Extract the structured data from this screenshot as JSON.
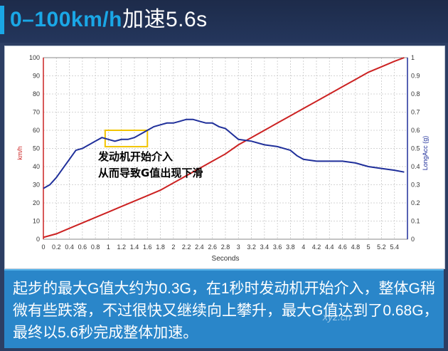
{
  "header": {
    "title_accent": "0–100km/h",
    "title_rest": "加速5.6s"
  },
  "chart_data": {
    "type": "line",
    "xlabel": "Seconds",
    "ylabel_left": "km/h",
    "ylabel_right": "LongAcc (g)",
    "xlim": [
      0,
      5.6
    ],
    "ylim_left": [
      0,
      100
    ],
    "ylim_right": [
      0,
      1
    ],
    "x_ticks": [
      "0",
      "0.2",
      "0.4",
      "0.6",
      "0.8",
      "1",
      "1.2",
      "1.4",
      "1.6",
      "1.8",
      "2",
      "2.2",
      "2.4",
      "2.6",
      "2.8",
      "3",
      "3.2",
      "3.4",
      "3.6",
      "3.8",
      "4",
      "4.2",
      "4.4",
      "4.6",
      "4.8",
      "5",
      "5.2",
      "5.4"
    ],
    "y_ticks_left": [
      "0",
      "10",
      "20",
      "30",
      "40",
      "50",
      "60",
      "70",
      "80",
      "90",
      "100"
    ],
    "y_ticks_right": [
      "0",
      "0.1",
      "0.2",
      "0.3",
      "0.4",
      "0.5",
      "0.6",
      "0.7",
      "0.8",
      "0.9",
      "1"
    ],
    "grid": true,
    "series": [
      {
        "axis": "left",
        "color": "#cc2222",
        "points": [
          [
            0,
            1
          ],
          [
            0.2,
            3
          ],
          [
            0.4,
            6
          ],
          [
            0.6,
            9
          ],
          [
            0.8,
            12
          ],
          [
            1.0,
            15
          ],
          [
            1.2,
            18
          ],
          [
            1.4,
            21
          ],
          [
            1.6,
            24
          ],
          [
            1.8,
            27
          ],
          [
            2.0,
            31
          ],
          [
            2.2,
            35
          ],
          [
            2.4,
            39
          ],
          [
            2.6,
            43
          ],
          [
            2.8,
            47
          ],
          [
            3.0,
            52
          ],
          [
            3.2,
            56
          ],
          [
            3.4,
            60
          ],
          [
            3.6,
            64
          ],
          [
            3.8,
            68
          ],
          [
            4.0,
            72
          ],
          [
            4.2,
            76
          ],
          [
            4.4,
            80
          ],
          [
            4.6,
            84
          ],
          [
            4.8,
            88
          ],
          [
            5.0,
            92
          ],
          [
            5.2,
            95
          ],
          [
            5.4,
            98
          ],
          [
            5.55,
            100
          ]
        ]
      },
      {
        "axis": "right",
        "color": "#1f2f9a",
        "points": [
          [
            0,
            0.28
          ],
          [
            0.1,
            0.3
          ],
          [
            0.2,
            0.34
          ],
          [
            0.3,
            0.39
          ],
          [
            0.4,
            0.44
          ],
          [
            0.5,
            0.49
          ],
          [
            0.6,
            0.5
          ],
          [
            0.7,
            0.52
          ],
          [
            0.8,
            0.54
          ],
          [
            0.9,
            0.56
          ],
          [
            1.0,
            0.55
          ],
          [
            1.1,
            0.54
          ],
          [
            1.2,
            0.55
          ],
          [
            1.3,
            0.55
          ],
          [
            1.4,
            0.56
          ],
          [
            1.5,
            0.58
          ],
          [
            1.6,
            0.6
          ],
          [
            1.7,
            0.62
          ],
          [
            1.8,
            0.63
          ],
          [
            1.9,
            0.64
          ],
          [
            2.0,
            0.64
          ],
          [
            2.1,
            0.65
          ],
          [
            2.2,
            0.66
          ],
          [
            2.3,
            0.66
          ],
          [
            2.4,
            0.65
          ],
          [
            2.5,
            0.64
          ],
          [
            2.6,
            0.64
          ],
          [
            2.7,
            0.62
          ],
          [
            2.8,
            0.61
          ],
          [
            2.9,
            0.58
          ],
          [
            3.0,
            0.55
          ],
          [
            3.2,
            0.54
          ],
          [
            3.4,
            0.52
          ],
          [
            3.6,
            0.51
          ],
          [
            3.8,
            0.49
          ],
          [
            3.9,
            0.46
          ],
          [
            4.0,
            0.44
          ],
          [
            4.2,
            0.43
          ],
          [
            4.4,
            0.43
          ],
          [
            4.6,
            0.43
          ],
          [
            4.8,
            0.42
          ],
          [
            5.0,
            0.4
          ],
          [
            5.2,
            0.39
          ],
          [
            5.4,
            0.38
          ],
          [
            5.55,
            0.37
          ]
        ]
      }
    ],
    "annotation": {
      "line1": "发动机开始介入",
      "line2": "从而导致G值出现下滑",
      "highlight_x": [
        0.95,
        1.6
      ],
      "highlight_y_right": [
        0.51,
        0.6
      ],
      "highlight_color": "#f2c400"
    }
  },
  "footer": {
    "text": "起步的最大G值大约为0.3G，在1秒时发动机开始介入，整体G稍微有些跌落，不过很快又继续向上攀升，最大G值达到了0.68G，最终以5.6秒完成整体加速。"
  },
  "watermark": {
    "text": "xyz.cn"
  }
}
